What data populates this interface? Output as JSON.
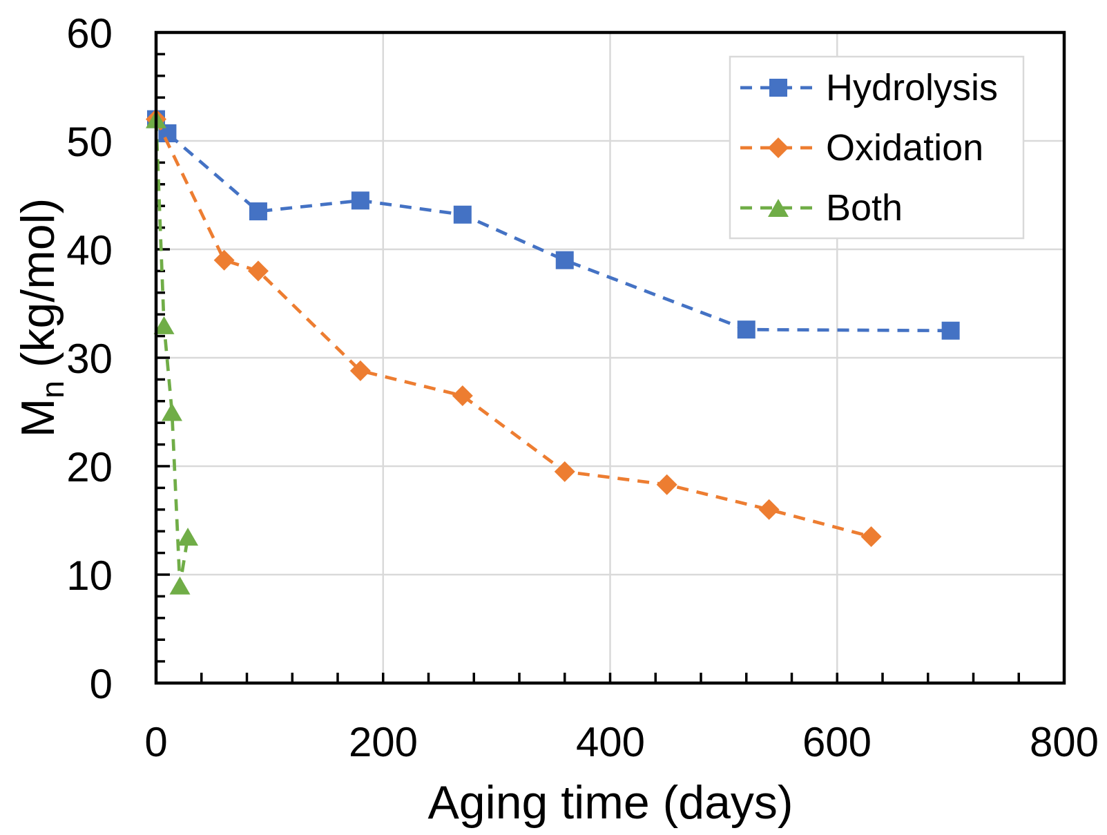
{
  "chart_data": {
    "type": "line",
    "title": "",
    "xlabel": "Aging time (days)",
    "ylabel": "Mn (kg/mol)",
    "ylabel_parts": {
      "main": "M",
      "sub": "n",
      "rest": " (kg/mol)"
    },
    "xlim": [
      0,
      800
    ],
    "ylim": [
      0,
      60
    ],
    "x_tick_labels": [
      "0",
      "200",
      "400",
      "600",
      "800"
    ],
    "x_tick_values": [
      0,
      200,
      400,
      600,
      800
    ],
    "x_minor_step": 40,
    "y_tick_labels": [
      "0",
      "10",
      "20",
      "30",
      "40",
      "50",
      "60"
    ],
    "y_tick_values": [
      0,
      10,
      20,
      30,
      40,
      50,
      60
    ],
    "y_minor_step": 2,
    "grid": {
      "x_values": [
        200,
        400,
        600
      ],
      "y_values": [
        10,
        20,
        30,
        40,
        50
      ],
      "color": "#D9D9D9"
    },
    "frame_color": "#000000",
    "background_color": "#FFFFFF",
    "legend_position": "top-right",
    "line_style": "dashed",
    "series": [
      {
        "name": "Hydrolysis",
        "marker": "square",
        "color": "#4472C4",
        "points": [
          [
            0,
            52
          ],
          [
            10,
            50.7
          ],
          [
            90,
            43.5
          ],
          [
            180,
            44.5
          ],
          [
            270,
            43.2
          ],
          [
            360,
            39
          ],
          [
            520,
            32.6
          ],
          [
            700,
            32.5
          ]
        ]
      },
      {
        "name": "Oxidation",
        "marker": "diamond",
        "color": "#ED7D31",
        "points": [
          [
            0,
            52
          ],
          [
            60,
            39
          ],
          [
            90,
            38
          ],
          [
            180,
            28.8
          ],
          [
            270,
            26.5
          ],
          [
            360,
            19.5
          ],
          [
            450,
            18.3
          ],
          [
            540,
            16
          ],
          [
            630,
            13.5
          ]
        ]
      },
      {
        "name": "Both",
        "marker": "triangle",
        "color": "#70AD47",
        "points": [
          [
            0,
            52
          ],
          [
            7,
            33
          ],
          [
            14,
            25
          ],
          [
            21,
            9
          ],
          [
            28,
            13.5
          ]
        ]
      }
    ]
  }
}
